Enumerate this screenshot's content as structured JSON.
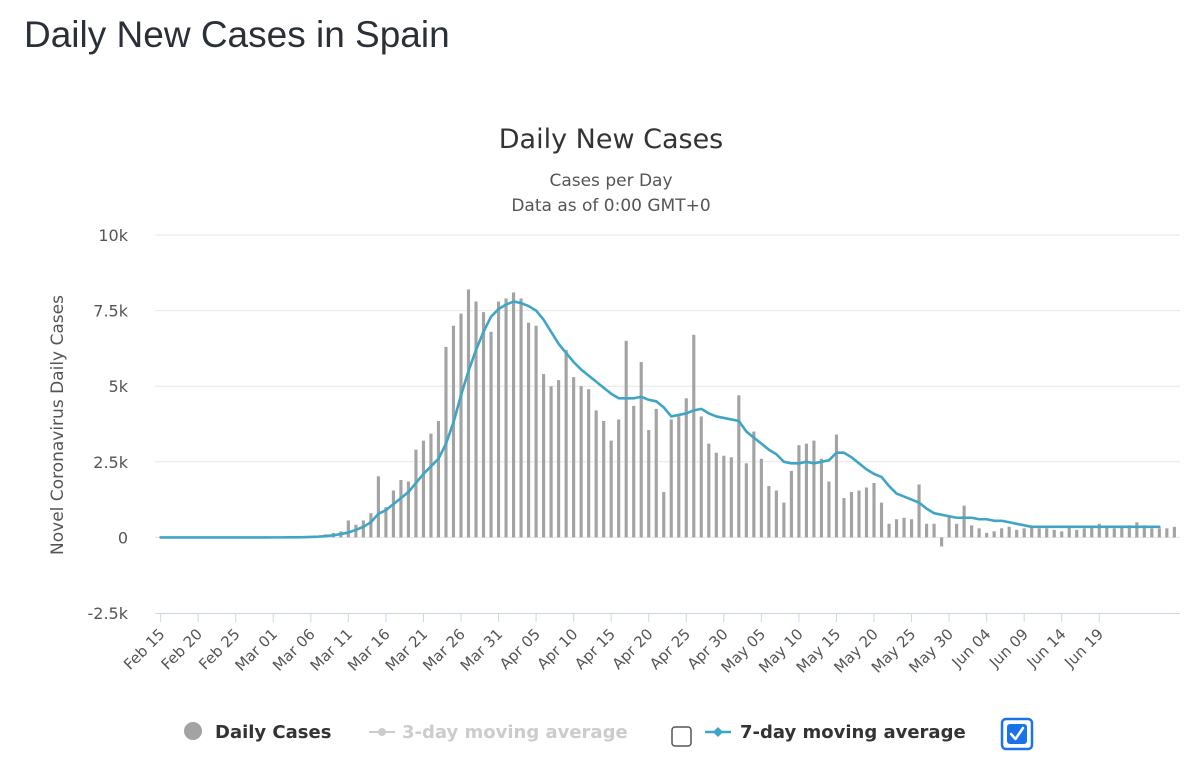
{
  "page": {
    "title": "Daily New Cases in Spain"
  },
  "colors": {
    "bars": "#a3a3a3",
    "line": "#3ea6c4",
    "grid": "#e6e6e6",
    "axis": "#ccd6eb",
    "legend_active": "#333333",
    "legend_inactive": "#cccccc",
    "checkbox_checked": "#1a73e8"
  },
  "chart_data": {
    "type": "bar",
    "title": "Daily New Cases",
    "subtitle": "Cases per Day",
    "subtitle2": "Data as of 0:00 GMT+0",
    "ylabel": "Novel Coronavirus Daily Cases",
    "ylim": [
      -2500,
      10000
    ],
    "yticks": [
      -2500,
      0,
      2500,
      5000,
      7500,
      10000
    ],
    "ytick_labels": [
      "-2.5k",
      "0",
      "2.5k",
      "5k",
      "7.5k",
      "10k"
    ],
    "x_start": "Feb 15",
    "x_end": "Jun 23",
    "xtick_labels": [
      "Feb 15",
      "Feb 20",
      "Feb 25",
      "Mar 01",
      "Mar 06",
      "Mar 11",
      "Mar 16",
      "Mar 21",
      "Mar 26",
      "Mar 31",
      "Apr 05",
      "Apr 10",
      "Apr 15",
      "Apr 20",
      "Apr 25",
      "Apr 30",
      "May 05",
      "May 10",
      "May 15",
      "May 20",
      "May 25",
      "May 30",
      "Jun 04",
      "Jun 09",
      "Jun 14",
      "Jun 19"
    ],
    "grid": true,
    "legend_position": "bottom",
    "series": [
      {
        "name": "Daily Cases",
        "type": "bar",
        "values": [
          0,
          0,
          0,
          0,
          0,
          0,
          0,
          0,
          0,
          0,
          1,
          0,
          0,
          0,
          0,
          2,
          0,
          5,
          10,
          18,
          40,
          60,
          100,
          150,
          200,
          560,
          420,
          560,
          800,
          2020,
          1000,
          1550,
          1900,
          1850,
          2900,
          3200,
          3430,
          3850,
          6300,
          7000,
          7400,
          8200,
          7800,
          7450,
          6800,
          7800,
          7900,
          8100,
          7900,
          7100,
          7000,
          5400,
          5000,
          5200,
          6200,
          5300,
          5000,
          4900,
          4200,
          3850,
          3200,
          3900,
          6500,
          4350,
          5800,
          3550,
          4250,
          1500,
          3900,
          4000,
          4600,
          6700,
          4000,
          3100,
          2800,
          2700,
          2650,
          4700,
          2450,
          3500,
          2600,
          1700,
          1550,
          1150,
          2200,
          3050,
          3100,
          3200,
          2600,
          1850,
          3400,
          1300,
          1500,
          1550,
          1650,
          1800,
          1150,
          450,
          600,
          650,
          600,
          1750,
          450,
          450,
          -300,
          700,
          450,
          1050,
          400,
          300,
          150,
          200,
          300,
          350,
          250,
          300,
          350,
          300,
          300,
          250,
          200,
          350,
          250,
          300,
          350,
          450,
          350,
          300,
          350,
          400,
          500,
          400,
          300,
          300,
          300,
          350
        ]
      },
      {
        "name": "3-day moving average",
        "type": "line",
        "visible": false
      },
      {
        "name": "7-day moving average",
        "type": "line",
        "values": [
          0,
          0,
          0,
          0,
          0,
          0,
          0,
          0,
          0,
          0,
          0,
          0,
          0,
          0,
          0,
          1,
          1,
          2,
          4,
          8,
          15,
          25,
          45,
          70,
          110,
          160,
          250,
          350,
          500,
          780,
          900,
          1100,
          1300,
          1500,
          1800,
          2100,
          2350,
          2600,
          3100,
          3800,
          4700,
          5500,
          6200,
          6800,
          7300,
          7550,
          7700,
          7800,
          7750,
          7650,
          7500,
          7200,
          6800,
          6400,
          6100,
          5800,
          5550,
          5350,
          5150,
          4950,
          4750,
          4600,
          4600,
          4600,
          4650,
          4550,
          4500,
          4300,
          4000,
          4050,
          4100,
          4200,
          4250,
          4100,
          4000,
          3950,
          3900,
          3850,
          3500,
          3300,
          3100,
          2900,
          2750,
          2500,
          2450,
          2450,
          2500,
          2450,
          2500,
          2550,
          2800,
          2800,
          2650,
          2450,
          2250,
          2100,
          2000,
          1700,
          1450,
          1350,
          1250,
          1150,
          950,
          800,
          750,
          700,
          650,
          650,
          650,
          600,
          600,
          550,
          550,
          500,
          450,
          400,
          350,
          350,
          350,
          350,
          350,
          350,
          350,
          350,
          350,
          350,
          350,
          350,
          350,
          350,
          350,
          350,
          350,
          350
        ]
      }
    ]
  },
  "legend": {
    "items": [
      {
        "label": "Daily Cases"
      },
      {
        "label": "3-day moving average"
      },
      {
        "label": "7-day moving average"
      }
    ]
  }
}
